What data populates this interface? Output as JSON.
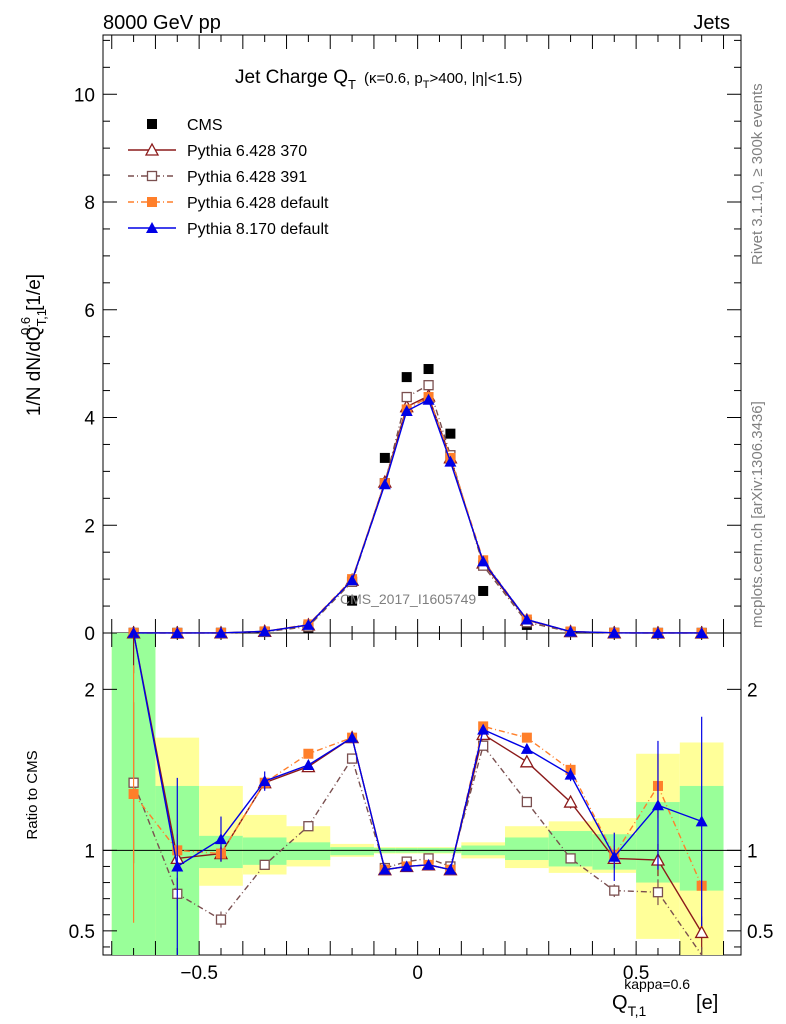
{
  "chart_data": [
    {
      "type": "line",
      "panel": "main",
      "title": "Jet Charge Q",
      "title_sub": "T",
      "title_suffix": "(κ=0.6, p",
      "title_suffix_sub": "T",
      "title_suffix_tail": ">400, |η|<1.5)",
      "header_left": "8000 GeV pp",
      "header_right": "Jets",
      "ylabel": "1/N dN/dQ",
      "ylabel_sup": "0.6",
      "ylabel_sub": "T,1",
      "ylabel_unit": "[1/e]",
      "xlabel": "Q",
      "xlabel_sup": "kappa=0.6",
      "xlabel_sub": "T,1",
      "xlabel_unit": "[e]",
      "watermark": "CMS_2017_I1605749",
      "side_label_top": "Rivet 3.1.10, ≥ 300k events",
      "side_label_bottom": "mcplots.cern.ch [arXiv:1306.3436]",
      "xlim": [
        -0.72,
        0.74
      ],
      "ylim": [
        0,
        11.1
      ],
      "yticks": [
        0,
        2,
        4,
        6,
        8,
        10
      ],
      "ytick_labels": [
        "0",
        "2",
        "4",
        "6",
        "8",
        "10"
      ],
      "x": [
        -0.65,
        -0.55,
        -0.45,
        -0.35,
        -0.25,
        -0.15,
        -0.075,
        -0.025,
        0.025,
        0.075,
        0.15,
        0.25,
        0.35,
        0.45,
        0.55,
        0.65
      ],
      "series": [
        {
          "name": "CMS",
          "color": "#000000",
          "marker": "square-filled",
          "line": "none",
          "values": [
            0.001,
            0.001,
            0.002,
            0.02,
            0.1,
            0.6,
            3.25,
            4.75,
            4.9,
            3.7,
            0.78,
            0.15,
            0.02,
            0.003,
            0.001,
            0.001
          ]
        },
        {
          "name": "Pythia 6.428 370",
          "color": "#8b1a1a",
          "marker": "triangle-open",
          "line": "solid",
          "values": [
            0.003,
            0.001,
            0.002,
            0.03,
            0.15,
            0.98,
            2.8,
            4.2,
            4.4,
            3.25,
            1.3,
            0.24,
            0.025,
            0.003,
            0.001,
            0.001
          ]
        },
        {
          "name": "Pythia 6.428 391",
          "color": "#7a4f4f",
          "marker": "square-open",
          "line": "dashdot",
          "values": [
            0.002,
            0.001,
            0.001,
            0.02,
            0.12,
            0.95,
            2.78,
            4.38,
            4.6,
            3.3,
            1.25,
            0.2,
            0.02,
            0.002,
            0.001,
            0.001
          ]
        },
        {
          "name": "Pythia 6.428 default",
          "color": "#ff7f2a",
          "marker": "square-filled",
          "line": "dashdot",
          "values": [
            0.002,
            0.001,
            0.002,
            0.03,
            0.16,
            1.0,
            2.78,
            4.15,
            4.38,
            3.25,
            1.35,
            0.25,
            0.028,
            0.003,
            0.001,
            0.001
          ]
        },
        {
          "name": "Pythia 8.170 default",
          "color": "#0000e6",
          "marker": "triangle-filled",
          "line": "solid",
          "values": [
            0.002,
            0.001,
            0.002,
            0.03,
            0.15,
            0.98,
            2.76,
            4.12,
            4.33,
            3.18,
            1.33,
            0.25,
            0.027,
            0.003,
            0.001,
            0.001
          ]
        }
      ]
    },
    {
      "type": "line",
      "panel": "ratio",
      "ylabel": "Ratio to CMS",
      "xlim": [
        -0.72,
        0.74
      ],
      "ylim": [
        0.35,
        2.35
      ],
      "yticks": [
        0.5,
        1,
        2
      ],
      "ytick_labels": [
        "0.5",
        "1",
        "2"
      ],
      "xticks": [
        -0.5,
        0,
        0.5
      ],
      "xtick_labels": [
        "−0.5",
        "0",
        "0.5"
      ],
      "x": [
        -0.65,
        -0.55,
        -0.45,
        -0.35,
        -0.25,
        -0.15,
        -0.075,
        -0.025,
        0.025,
        0.075,
        0.15,
        0.25,
        0.35,
        0.45,
        0.55,
        0.65
      ],
      "bins": [
        [
          -0.7,
          -0.6
        ],
        [
          -0.6,
          -0.5
        ],
        [
          -0.5,
          -0.4
        ],
        [
          -0.4,
          -0.3
        ],
        [
          -0.3,
          -0.2
        ],
        [
          -0.2,
          -0.1
        ],
        [
          -0.1,
          -0.05
        ],
        [
          -0.05,
          0
        ],
        [
          0,
          0.05
        ],
        [
          0.05,
          0.1
        ],
        [
          0.1,
          0.2
        ],
        [
          0.2,
          0.3
        ],
        [
          0.3,
          0.4
        ],
        [
          0.4,
          0.5
        ],
        [
          0.5,
          0.6
        ],
        [
          0.6,
          0.7
        ]
      ],
      "band_green": [
        [
          0.2,
          3.0
        ],
        [
          0.25,
          1.4
        ],
        [
          0.89,
          1.09
        ],
        [
          0.91,
          1.08
        ],
        [
          0.94,
          1.05
        ],
        [
          0.97,
          1.02
        ],
        [
          0.985,
          1.015
        ],
        [
          0.985,
          1.015
        ],
        [
          0.985,
          1.015
        ],
        [
          0.985,
          1.015
        ],
        [
          0.97,
          1.03
        ],
        [
          0.94,
          1.08
        ],
        [
          0.9,
          1.12
        ],
        [
          0.88,
          1.1
        ],
        [
          0.8,
          1.3
        ],
        [
          0.75,
          1.4
        ]
      ],
      "band_yellow": [
        [
          0.2,
          3.0
        ],
        [
          0.2,
          1.7
        ],
        [
          0.78,
          1.4
        ],
        [
          0.85,
          1.22
        ],
        [
          0.9,
          1.15
        ],
        [
          0.96,
          1.04
        ],
        [
          0.98,
          1.02
        ],
        [
          0.98,
          1.02
        ],
        [
          0.98,
          1.02
        ],
        [
          0.98,
          1.02
        ],
        [
          0.95,
          1.05
        ],
        [
          0.89,
          1.15
        ],
        [
          0.86,
          1.18
        ],
        [
          0.86,
          1.2
        ],
        [
          0.45,
          1.6
        ],
        [
          0.35,
          1.67
        ]
      ],
      "series": [
        {
          "name": "Pythia 6.428 370",
          "color": "#8b1a1a",
          "marker": "triangle-open",
          "line": "solid",
          "values": [
            2.4,
            0.95,
            0.98,
            1.42,
            1.52,
            1.7,
            0.88,
            0.9,
            0.91,
            0.88,
            1.72,
            1.55,
            1.3,
            0.95,
            0.94,
            0.49
          ],
          "err": [
            0.3,
            0.08,
            0.05,
            0.04,
            0.02,
            0.02,
            0.01,
            0.01,
            0.01,
            0.01,
            0.02,
            0.03,
            0.04,
            0.06,
            0.1,
            0.1
          ]
        },
        {
          "name": "Pythia 6.428 391",
          "color": "#7a4f4f",
          "marker": "square-open",
          "line": "dashdot",
          "values": [
            1.42,
            0.73,
            0.57,
            0.91,
            1.15,
            1.57,
            0.89,
            0.93,
            0.95,
            0.9,
            1.65,
            1.3,
            0.95,
            0.75,
            0.74,
            0.3
          ],
          "err": [
            0.5,
            0.1,
            0.05,
            0.02,
            0.02,
            0.02,
            0.01,
            0.01,
            0.01,
            0.01,
            0.02,
            0.02,
            0.02,
            0.04,
            0.08,
            0.1
          ]
        },
        {
          "name": "Pythia 6.428 default",
          "color": "#ff7f2a",
          "marker": "square-filled",
          "line": "dashdot",
          "values": [
            1.35,
            1.0,
            0.98,
            1.42,
            1.6,
            1.7,
            0.88,
            0.9,
            0.91,
            0.88,
            1.77,
            1.7,
            1.5,
            0.97,
            1.4,
            0.78
          ],
          "err": [
            0.8,
            0.1,
            0.05,
            0.03,
            0.02,
            0.02,
            0.01,
            0.01,
            0.01,
            0.01,
            0.02,
            0.02,
            0.04,
            0.06,
            0.2,
            0.2
          ]
        },
        {
          "name": "Pythia 8.170 default",
          "color": "#0000e6",
          "marker": "triangle-filled",
          "line": "solid",
          "values": [
            3.4,
            0.9,
            1.07,
            1.43,
            1.53,
            1.7,
            0.88,
            0.9,
            0.91,
            0.88,
            1.75,
            1.63,
            1.47,
            0.96,
            1.28,
            1.18
          ],
          "err": [
            1.0,
            0.55,
            0.14,
            0.06,
            0.03,
            0.02,
            0.01,
            0.01,
            0.01,
            0.01,
            0.02,
            0.03,
            0.04,
            0.15,
            0.4,
            0.65
          ]
        }
      ]
    }
  ]
}
